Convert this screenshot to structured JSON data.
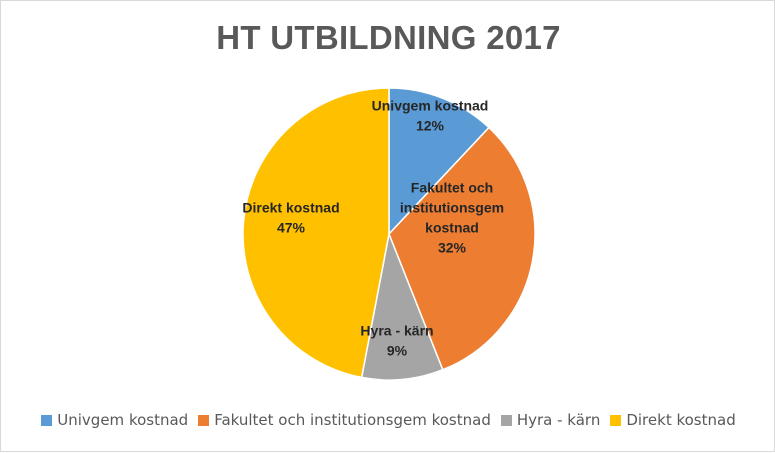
{
  "chart_data": {
    "type": "pie",
    "title": "HT UTBILDNING 2017",
    "categories": [
      "Univgem kostnad",
      "Fakultet och institutionsgem kostnad",
      "Hyra - kärn",
      "Direkt kostnad"
    ],
    "values": [
      12,
      32,
      9,
      47
    ],
    "value_labels": [
      "12%",
      "32%",
      "9%",
      "47%"
    ],
    "slice_label_lines": [
      [
        "Univgem kostnad"
      ],
      [
        "Fakultet och",
        "institutionsgem",
        "kostnad"
      ],
      [
        "Hyra - kärn"
      ],
      [
        "Direkt kostnad"
      ]
    ],
    "colors": [
      "#5b9bd5",
      "#ed7d31",
      "#a5a5a5",
      "#ffc000"
    ],
    "legend_position": "bottom",
    "start_angle": "12 o'clock, clockwise"
  }
}
